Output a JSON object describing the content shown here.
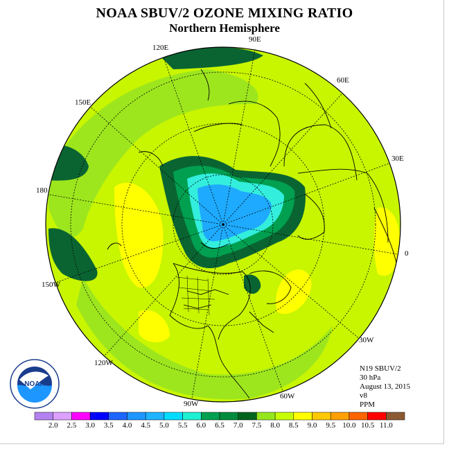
{
  "title": "NOAA SBUV/2 OZONE MIXING RATIO",
  "subtitle": "Northern Hemisphere",
  "longitude_labels": {
    "lon_90e": "90E",
    "lon_120e": "120E",
    "lon_60e": "60E",
    "lon_150e": "150E",
    "lon_30e": "30E",
    "lon_180": "180",
    "lon_0": "0",
    "lon_150w": "150W",
    "lon_30w": "30W",
    "lon_120w": "120W",
    "lon_60w": "60W",
    "lon_90w": "90W"
  },
  "info": {
    "instrument": "N19 SBUV/2",
    "level": "30 hPa",
    "date": "August 13, 2015",
    "version": "v8",
    "units": "PPM"
  },
  "logo": {
    "text": "NOAA"
  },
  "colorbar": {
    "ticks": [
      "2.0",
      "2.5",
      "3.0",
      "3.5",
      "4.0",
      "4.5",
      "5.0",
      "5.5",
      "6.0",
      "6.5",
      "7.0",
      "7.5",
      "8.0",
      "8.5",
      "9.0",
      "9.5",
      "10.0",
      "10.5",
      "11.0"
    ],
    "colors": [
      "#b482f0",
      "#dca0ff",
      "#ff00ff",
      "#0000ff",
      "#1e64ff",
      "#1e96ff",
      "#1eb4ff",
      "#00dcff",
      "#1ef0d2",
      "#00a050",
      "#008c3c",
      "#00641e",
      "#96e61e",
      "#c8ff00",
      "#ffff00",
      "#ffc800",
      "#ffa000",
      "#ff6400",
      "#ff0000",
      "#8c5a32"
    ]
  },
  "map_colors": {
    "bg": "#c8f500",
    "green_dark": "#0a6432",
    "green_mid": "#00a050",
    "green_light": "#9de61e",
    "yellow": "#ffff00",
    "cyan": "#33eedd",
    "blue": "#1eaaff"
  }
}
